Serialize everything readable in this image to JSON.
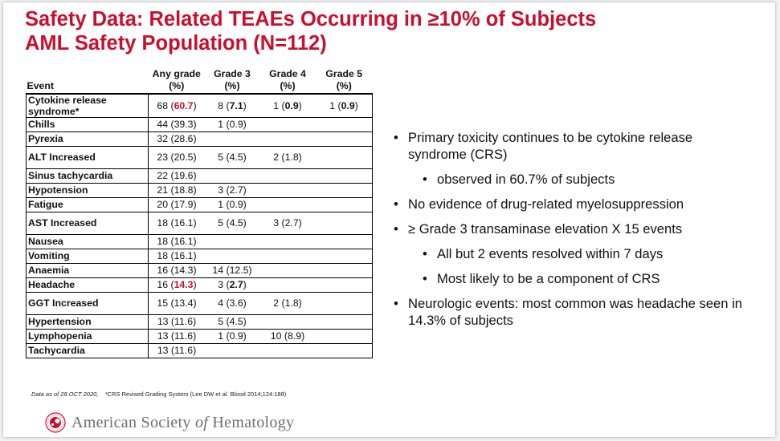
{
  "title": {
    "line1": "Safety Data: Related TEAEs Occurring in ≥10% of Subjects",
    "line2": "AML Safety Population (N=112)"
  },
  "table": {
    "headers": {
      "event": "Event",
      "any_grade": [
        "Any grade",
        "(%)"
      ],
      "grade3": [
        "Grade 3",
        "(%)"
      ],
      "grade4": [
        "Grade 4",
        "(%)"
      ],
      "grade5": [
        "Grade 5",
        "(%)"
      ]
    },
    "rows": [
      {
        "event": "Cytokine release syndrome*",
        "any_n": "68",
        "any_pct": "60.7",
        "any_pct_red": true,
        "g3_n": "8",
        "g3_pct": "7.1",
        "g3_pct_bold": true,
        "g4_n": "1",
        "g4_pct": "0.9",
        "g4_pct_bold": true,
        "g5_n": "1",
        "g5_pct": "0.9",
        "g5_pct_bold": true,
        "tall": true
      },
      {
        "event": "Chills",
        "any_n": "44",
        "any_pct": "39.3",
        "g3_n": "1",
        "g3_pct": "0.9"
      },
      {
        "event": "Pyrexia",
        "any_n": "32",
        "any_pct": "28.6"
      },
      {
        "event": "ALT Increased",
        "any_n": "23",
        "any_pct": "20.5",
        "g3_n": "5",
        "g3_pct": "4.5",
        "g4_n": "2",
        "g4_pct": "1.8",
        "tall": true
      },
      {
        "event": "Sinus tachycardia",
        "any_n": "22",
        "any_pct": "19.6"
      },
      {
        "event": "Hypotension",
        "any_n": "21",
        "any_pct": "18.8",
        "g3_n": "3",
        "g3_pct": "2.7"
      },
      {
        "event": "Fatigue",
        "any_n": "20",
        "any_pct": "17.9",
        "g3_n": "1",
        "g3_pct": "0.9"
      },
      {
        "event": "AST Increased",
        "any_n": "18",
        "any_pct": "16.1",
        "g3_n": "5",
        "g3_pct": "4.5",
        "g4_n": "3",
        "g4_pct": "2.7",
        "tall": true
      },
      {
        "event": "Nausea",
        "any_n": "18",
        "any_pct": "16.1"
      },
      {
        "event": "Vomiting",
        "any_n": "18",
        "any_pct": "16.1"
      },
      {
        "event": "Anaemia",
        "any_n": "16",
        "any_pct": "14.3",
        "g3_n": "14",
        "g3_pct": "12.5"
      },
      {
        "event": "Headache",
        "any_n": "16",
        "any_pct": "14.3",
        "any_pct_red": true,
        "g3_n": "3",
        "g3_pct": "2.7",
        "g3_pct_bold": true
      },
      {
        "event": "GGT Increased",
        "any_n": "15",
        "any_pct": "13.4",
        "g3_n": "4",
        "g3_pct": "3.6",
        "g4_n": "2",
        "g4_pct": "1.8",
        "tall": true
      },
      {
        "event": "Hypertension",
        "any_n": "13",
        "any_pct": "11.6",
        "g3_n": "5",
        "g3_pct": "4.5"
      },
      {
        "event": "Lymphopenia",
        "any_n": "13",
        "any_pct": "11.6",
        "g3_n": "1",
        "g3_pct": "0.9",
        "g4_n": "10",
        "g4_pct": "8.9"
      },
      {
        "event": "Tachycardia",
        "any_n": "13",
        "any_pct": "11.6"
      }
    ]
  },
  "footnote": {
    "date": "Data as of 28 OCT 2020,",
    "crs": "*CRS Revised Grading System (Lee DW et al. Blood 2014;124:188)"
  },
  "bullets": [
    {
      "text": "Primary toxicity continues to be cytokine release syndrome (CRS)",
      "level": 1
    },
    {
      "text": "observed in 60.7% of subjects",
      "level": 2
    },
    {
      "text": "No evidence of drug-related myelosuppression",
      "level": 1
    },
    {
      "text": "≥ Grade 3 transaminase elevation X 15 events",
      "level": 1
    },
    {
      "text": "All but 2 events resolved within 7 days",
      "level": 2
    },
    {
      "text": "Most likely to be a component of CRS",
      "level": 2
    },
    {
      "text": "Neurologic events: most common was headache seen in 14.3% of subjects",
      "level": 1
    }
  ],
  "logo": {
    "text_pre": "American Society ",
    "text_of": "of",
    "text_post": " Hematology",
    "icon": "ash-logo-icon",
    "accent": "#c8102e"
  },
  "colors": {
    "accent": "#c8102e",
    "text": "#111111",
    "background": "#ffffff"
  }
}
